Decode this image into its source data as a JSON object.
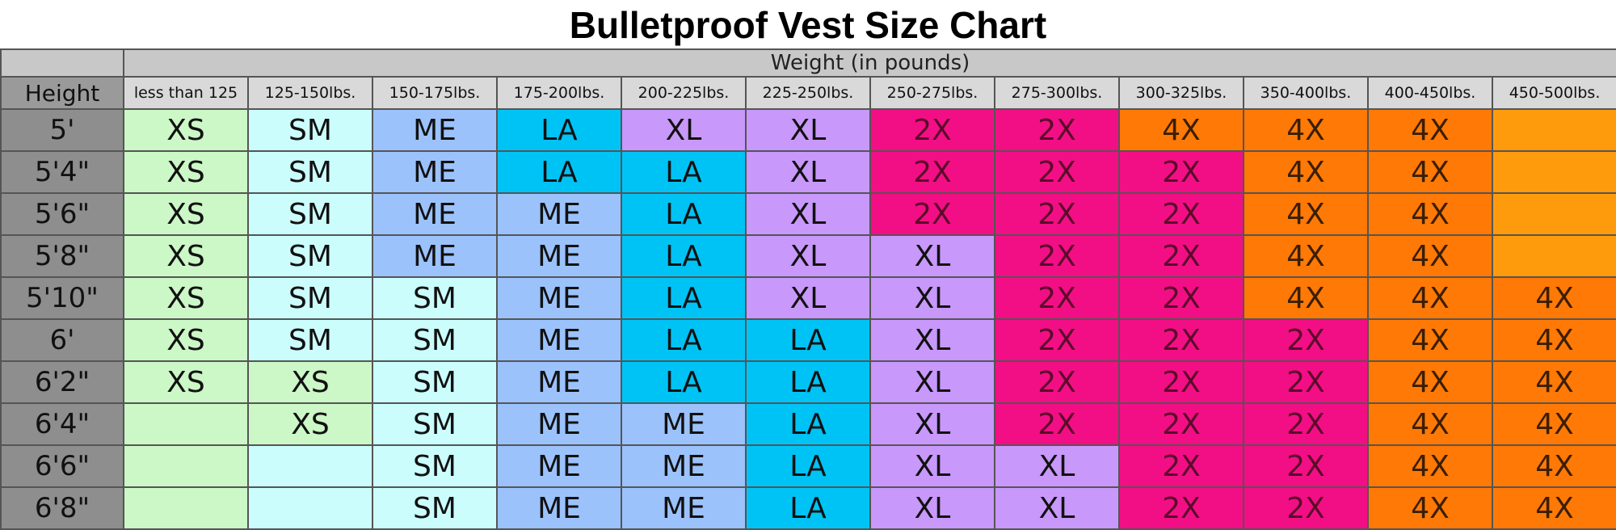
{
  "chart_data": {
    "type": "table",
    "title": "Bulletproof Vest Size Chart",
    "header_group": "Weight (in pounds)",
    "row_header_label": "Height",
    "columns": [
      "less than 125",
      "125-150lbs.",
      "150-175lbs.",
      "175-200lbs.",
      "200-225lbs.",
      "225-250lbs.",
      "250-275lbs.",
      "275-300lbs.",
      "300-325lbs.",
      "350-400lbs.",
      "400-450lbs.",
      "450-500lbs."
    ],
    "rows": [
      {
        "height": "5'",
        "sizes": [
          "XS",
          "SM",
          "ME",
          "LA",
          "XL",
          "XL",
          "2X",
          "2X",
          "4X",
          "4X",
          "4X",
          ""
        ]
      },
      {
        "height": "5'4\"",
        "sizes": [
          "XS",
          "SM",
          "ME",
          "LA",
          "LA",
          "XL",
          "2X",
          "2X",
          "2X",
          "4X",
          "4X",
          ""
        ]
      },
      {
        "height": "5'6\"",
        "sizes": [
          "XS",
          "SM",
          "ME",
          "ME",
          "LA",
          "XL",
          "2X",
          "2X",
          "2X",
          "4X",
          "4X",
          ""
        ]
      },
      {
        "height": "5'8\"",
        "sizes": [
          "XS",
          "SM",
          "ME",
          "ME",
          "LA",
          "XL",
          "XL",
          "2X",
          "2X",
          "4X",
          "4X",
          ""
        ]
      },
      {
        "height": "5'10\"",
        "sizes": [
          "XS",
          "SM",
          "SM",
          "ME",
          "LA",
          "XL",
          "XL",
          "2X",
          "2X",
          "4X",
          "4X",
          "4X"
        ]
      },
      {
        "height": "6'",
        "sizes": [
          "XS",
          "SM",
          "SM",
          "ME",
          "LA",
          "LA",
          "XL",
          "2X",
          "2X",
          "2X",
          "4X",
          "4X"
        ]
      },
      {
        "height": "6'2\"",
        "sizes": [
          "XS",
          "XS",
          "SM",
          "ME",
          "LA",
          "LA",
          "XL",
          "2X",
          "2X",
          "2X",
          "4X",
          "4X"
        ]
      },
      {
        "height": "6'4\"",
        "sizes": [
          "",
          "XS",
          "SM",
          "ME",
          "ME",
          "LA",
          "XL",
          "2X",
          "2X",
          "2X",
          "4X",
          "4X"
        ]
      },
      {
        "height": "6'6\"",
        "sizes": [
          "",
          "",
          "SM",
          "ME",
          "ME",
          "LA",
          "XL",
          "XL",
          "2X",
          "2X",
          "4X",
          "4X"
        ]
      },
      {
        "height": "6'8\"",
        "sizes": [
          "",
          "",
          "SM",
          "ME",
          "ME",
          "LA",
          "XL",
          "XL",
          "2X",
          "2X",
          "4X",
          "4X"
        ]
      }
    ],
    "size_colors": {
      "XS": "#ccf7c6",
      "SM": "#ccfdfd",
      "ME": "#9cc2fb",
      "LA": "#00c3f5",
      "XL": "#c898fa",
      "2X": "#f20f85",
      "4X": "#fe7906"
    },
    "empty_colors": [
      "#ccf7c6",
      "#ccfdfd",
      "#ccfdfd",
      "#ccfdfd",
      "#ccfdfd",
      "#ccfdfd",
      "#ccfdfd",
      "#ccfdfd",
      "#ccfdfd",
      "#ccfdfd",
      "#ccfdfd",
      "#fd9b0c"
    ],
    "text_colors": {
      "2X": "#5a0a2a",
      "4X": "#3a1e00"
    }
  }
}
